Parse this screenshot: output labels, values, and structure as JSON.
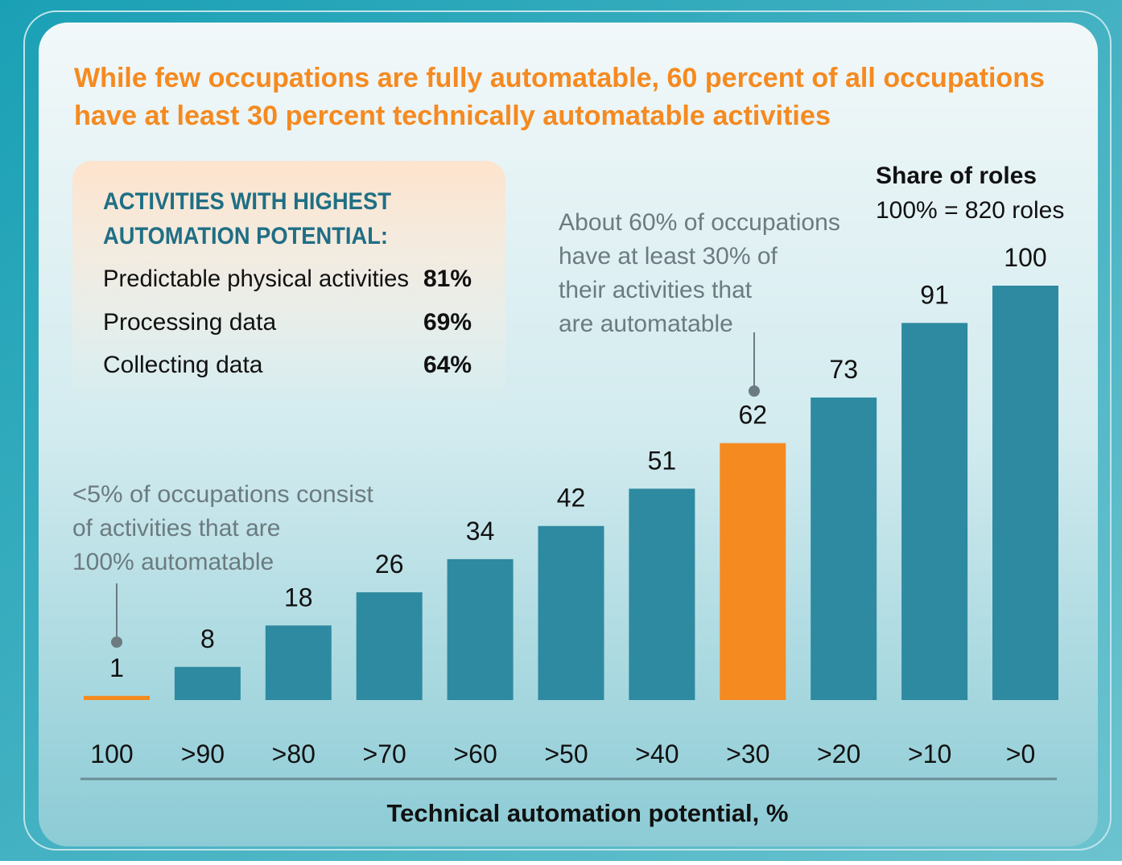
{
  "chart_data": {
    "type": "bar",
    "title": [
      "While few occupations are fully automatable, 60 percent of all occupations",
      "have at least 30 percent technically automatable activities"
    ],
    "categories": [
      "100",
      ">90",
      ">80",
      ">70",
      ">60",
      ">50",
      ">40",
      ">30",
      ">20",
      ">10",
      ">0"
    ],
    "values": [
      1,
      8,
      18,
      26,
      34,
      42,
      51,
      62,
      73,
      91,
      100
    ],
    "colors": [
      "#f58a20",
      "#2e8aa0",
      "#2e8aa0",
      "#2e8aa0",
      "#2e8aa0",
      "#2e8aa0",
      "#2e8aa0",
      "#f58a20",
      "#2e8aa0",
      "#2e8aa0",
      "#2e8aa0"
    ],
    "ylim": [
      0,
      100
    ],
    "x_label": "Technical automation potential, %",
    "legend": {
      "title": "Share of roles",
      "note": "100% = 820 roles"
    },
    "annotations": [
      {
        "lines": [
          "<5% of occupations consist",
          "of activities that are",
          "100% automatable"
        ]
      },
      {
        "lines": [
          "About 60% of occupations",
          "have at least 30% of",
          "their activities that",
          "are automatable"
        ]
      }
    ],
    "highlights": {
      "heading": [
        "ACTIVITIES WITH HIGHEST",
        "AUTOMATION POTENTIAL:"
      ],
      "rows": [
        {
          "label": "Predictable physical activities",
          "value": "81%"
        },
        {
          "label": "Processing data",
          "value": "69%"
        },
        {
          "label": "Collecting data",
          "value": "64%"
        }
      ]
    }
  }
}
